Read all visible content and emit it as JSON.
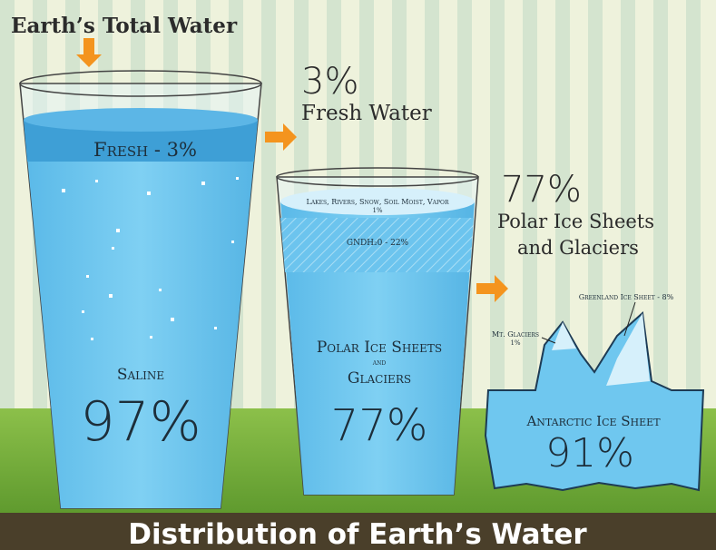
{
  "header": {
    "title": "Earth’s Total Water"
  },
  "fresh_callout": {
    "percent": "3%",
    "label": "Fresh Water"
  },
  "total_glass": {
    "fresh_band": "Fresh - 3%",
    "saline_label": "Saline",
    "saline_percent": "97%"
  },
  "fresh_glass": {
    "surface_label": "Lakes, Rivers, Snow, Soil Moist, Vapor",
    "surface_percent": "1%",
    "ground_label": "GNDH₂0 - 22%",
    "main_label_1": "Polar Ice Sheets",
    "main_label_2": "and",
    "main_label_3": "Glaciers",
    "main_percent": "77%"
  },
  "polar_callout": {
    "percent": "77%",
    "label_1": "Polar Ice Sheets",
    "label_2": "and Glaciers"
  },
  "iceberg": {
    "greenland": "Greenland Ice Sheet - 8%",
    "mt_glaciers": "Mt. Glaciers",
    "mt_percent": "1%",
    "antarctic_label": "Antarctic Ice Sheet",
    "antarctic_percent": "91%"
  },
  "footer": {
    "title": "Distribution of Earth’s Water"
  }
}
